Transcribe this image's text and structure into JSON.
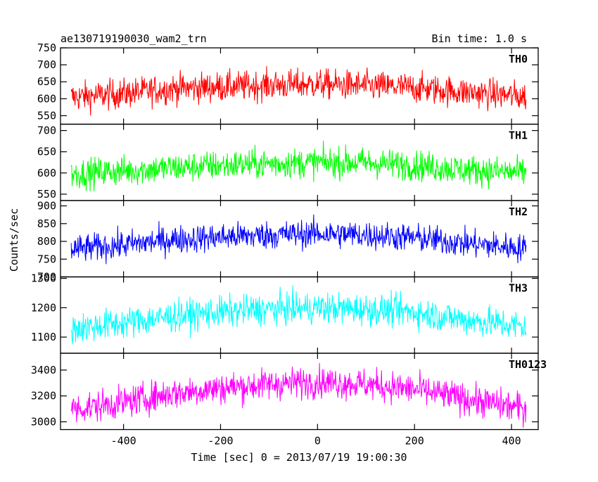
{
  "header": {
    "title": "ae130719190030_wam2_trn",
    "bin_time": "Bin time: 1.0 s"
  },
  "chart_data": {
    "type": "line",
    "xlabel": "Time [sec] 0 = 2013/07/19 19:00:30",
    "ylabel": "Counts/sec",
    "xlim": [
      -530,
      455
    ],
    "xticks": [
      -400,
      -200,
      0,
      200,
      400
    ],
    "x_data_range": [
      -508,
      430
    ],
    "bin_time_s": 1.0,
    "panels": [
      {
        "name": "TH0",
        "color": "#ff0000",
        "ylim": [
          525,
          750
        ],
        "yticks": [
          550,
          600,
          650,
          700,
          750
        ],
        "series": [
          {
            "x": -500,
            "y": 605
          },
          {
            "x": -400,
            "y": 615
          },
          {
            "x": -300,
            "y": 630
          },
          {
            "x": -200,
            "y": 635
          },
          {
            "x": -100,
            "y": 640
          },
          {
            "x": 0,
            "y": 643
          },
          {
            "x": 100,
            "y": 638
          },
          {
            "x": 200,
            "y": 632
          },
          {
            "x": 300,
            "y": 620
          },
          {
            "x": 430,
            "y": 606
          }
        ],
        "noise_amplitude": 40
      },
      {
        "name": "TH1",
        "color": "#00ff00",
        "ylim": [
          535,
          715
        ],
        "yticks": [
          550,
          600,
          650,
          700
        ],
        "series": [
          {
            "x": -500,
            "y": 598
          },
          {
            "x": -400,
            "y": 605
          },
          {
            "x": -300,
            "y": 612
          },
          {
            "x": -200,
            "y": 618
          },
          {
            "x": -100,
            "y": 622
          },
          {
            "x": 0,
            "y": 625
          },
          {
            "x": 100,
            "y": 624
          },
          {
            "x": 200,
            "y": 618
          },
          {
            "x": 300,
            "y": 608
          },
          {
            "x": 430,
            "y": 600
          }
        ],
        "noise_amplitude": 32
      },
      {
        "name": "TH2",
        "color": "#0000ff",
        "ylim": [
          700,
          915
        ],
        "yticks": [
          700,
          750,
          800,
          850,
          900
        ],
        "series": [
          {
            "x": -500,
            "y": 778
          },
          {
            "x": -400,
            "y": 790
          },
          {
            "x": -300,
            "y": 805
          },
          {
            "x": -200,
            "y": 812
          },
          {
            "x": -100,
            "y": 818
          },
          {
            "x": 0,
            "y": 822
          },
          {
            "x": 100,
            "y": 818
          },
          {
            "x": 200,
            "y": 810
          },
          {
            "x": 300,
            "y": 795
          },
          {
            "x": 430,
            "y": 780
          }
        ],
        "noise_amplitude": 36
      },
      {
        "name": "TH3",
        "color": "#00ffff",
        "ylim": [
          1045,
          1305
        ],
        "yticks": [
          1100,
          1200,
          1300
        ],
        "series": [
          {
            "x": -500,
            "y": 1130
          },
          {
            "x": -400,
            "y": 1148
          },
          {
            "x": -300,
            "y": 1170
          },
          {
            "x": -200,
            "y": 1185
          },
          {
            "x": -100,
            "y": 1195
          },
          {
            "x": 0,
            "y": 1200
          },
          {
            "x": 100,
            "y": 1195
          },
          {
            "x": 200,
            "y": 1185
          },
          {
            "x": 300,
            "y": 1160
          },
          {
            "x": 430,
            "y": 1135
          }
        ],
        "noise_amplitude": 48
      },
      {
        "name": "TH0123",
        "color": "#ff00ff",
        "ylim": [
          2940,
          3530
        ],
        "yticks": [
          3000,
          3200,
          3400
        ],
        "series": [
          {
            "x": -500,
            "y": 3100
          },
          {
            "x": -400,
            "y": 3150
          },
          {
            "x": -300,
            "y": 3220
          },
          {
            "x": -200,
            "y": 3260
          },
          {
            "x": -100,
            "y": 3290
          },
          {
            "x": 0,
            "y": 3310
          },
          {
            "x": 100,
            "y": 3290
          },
          {
            "x": 200,
            "y": 3250
          },
          {
            "x": 300,
            "y": 3180
          },
          {
            "x": 430,
            "y": 3100
          }
        ],
        "noise_amplitude": 110
      }
    ]
  }
}
